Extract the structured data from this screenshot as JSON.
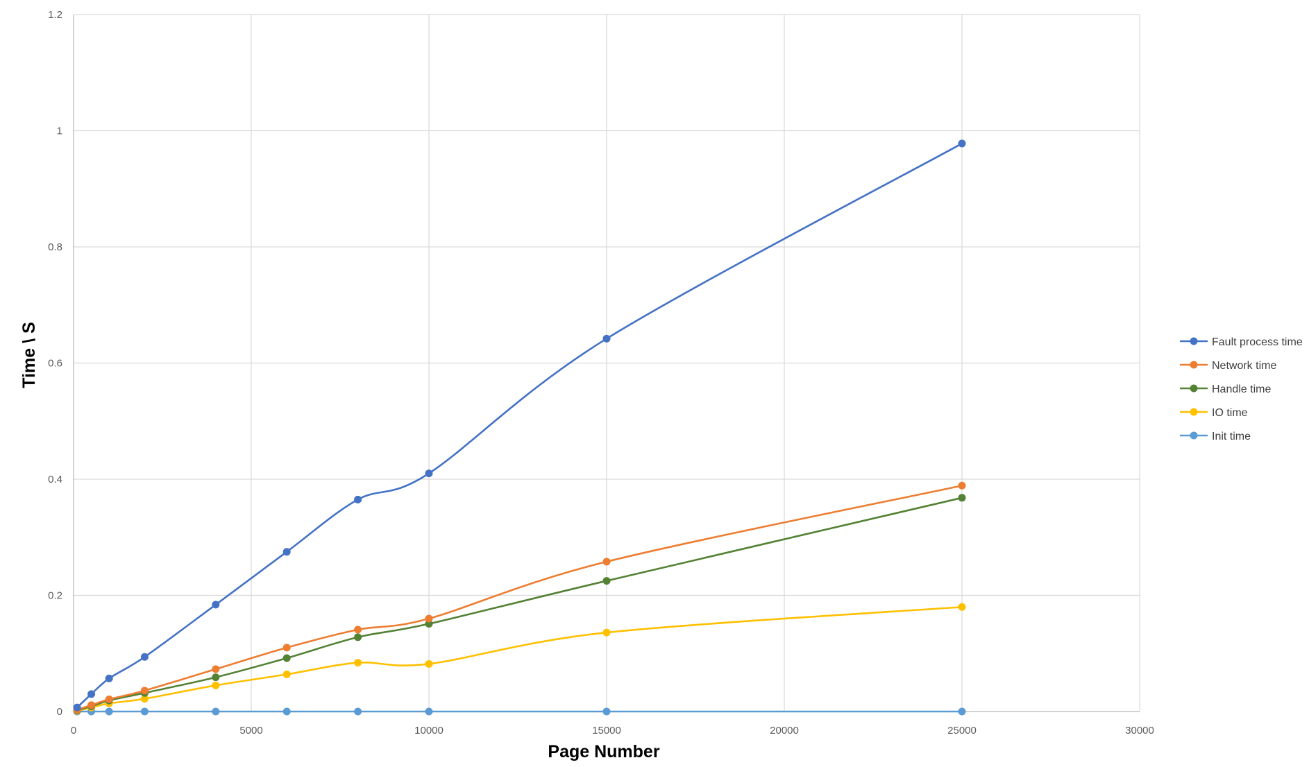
{
  "chart_data": {
    "type": "line",
    "title": "",
    "xlabel": "Page Number",
    "ylabel": "Time \\ S",
    "xlim": [
      0,
      30000
    ],
    "ylim": [
      0,
      1.2
    ],
    "x_ticks": [
      0,
      5000,
      10000,
      15000,
      20000,
      25000,
      30000
    ],
    "y_ticks": [
      0,
      0.2,
      0.4,
      0.6,
      0.8,
      1,
      1.2
    ],
    "x_tick_labels": [
      "0",
      "5000",
      "10000",
      "15000",
      "20000",
      "25000",
      "30000"
    ],
    "y_tick_labels": [
      "0",
      "0.2",
      "0.4",
      "0.6",
      "0.8",
      "1",
      "1.2"
    ],
    "grid": true,
    "smooth": true,
    "legend_position": "right",
    "x": [
      100,
      500,
      1000,
      2000,
      4000,
      6000,
      8000,
      10000,
      15000,
      25000
    ],
    "series": [
      {
        "name": "Fault process time",
        "color": "#4472C4",
        "values": [
          0.007,
          0.03,
          0.057,
          0.094,
          0.184,
          0.275,
          0.365,
          0.41,
          0.642,
          0.978
        ]
      },
      {
        "name": "Network time",
        "color": "#ED7D31",
        "values": [
          0.003,
          0.011,
          0.021,
          0.036,
          0.073,
          0.11,
          0.141,
          0.16,
          0.258,
          0.389
        ]
      },
      {
        "name": "Handle time",
        "color": "#548235",
        "values": [
          0.002,
          0.009,
          0.019,
          0.032,
          0.059,
          0.092,
          0.128,
          0.151,
          0.225,
          0.368
        ]
      },
      {
        "name": "IO time",
        "color": "#FFC000",
        "values": [
          0.001,
          0.007,
          0.014,
          0.022,
          0.045,
          0.064,
          0.084,
          0.082,
          0.136,
          0.18
        ]
      },
      {
        "name": "Init time",
        "color": "#5B9BD5",
        "values": [
          0,
          0,
          0,
          0,
          0,
          0,
          0,
          0,
          0,
          0
        ]
      }
    ]
  }
}
